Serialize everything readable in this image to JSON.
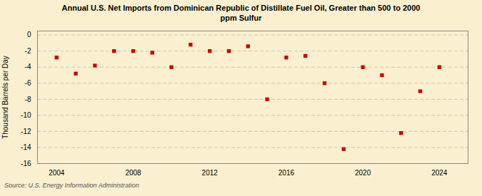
{
  "chart_data": {
    "type": "scatter",
    "title": "Annual U.S. Net Imports from Dominican Republic of Distillate Fuel Oil, Greater than 500 to 2000\nppm Sulfur",
    "ylabel": "Thousand Barrels per Day",
    "source": "Source: U.S. Energy Information Administration",
    "x": [
      2004,
      2005,
      2006,
      2007,
      2008,
      2009,
      2010,
      2011,
      2012,
      2013,
      2014,
      2015,
      2016,
      2017,
      2018,
      2019,
      2020,
      2021,
      2022,
      2023,
      2024
    ],
    "values": [
      -2.8,
      -4.8,
      -3.8,
      -2.0,
      -2.0,
      -2.2,
      -4.0,
      -1.2,
      -2.0,
      -2.0,
      -1.4,
      -8.0,
      -2.8,
      -2.6,
      -6.0,
      -14.2,
      -4.0,
      -5.0,
      -12.2,
      -7.0,
      -4.0
    ],
    "color": "#cc0000",
    "marker": "square",
    "xlim": [
      2003.0,
      2025.5
    ],
    "xticks": [
      2004,
      2008,
      2012,
      2016,
      2020,
      2024
    ],
    "ylim": [
      -16,
      0.5
    ],
    "yticks": [
      0,
      -2,
      -4,
      -6,
      -8,
      -10,
      -12,
      -14,
      -16
    ],
    "grid": "y"
  }
}
